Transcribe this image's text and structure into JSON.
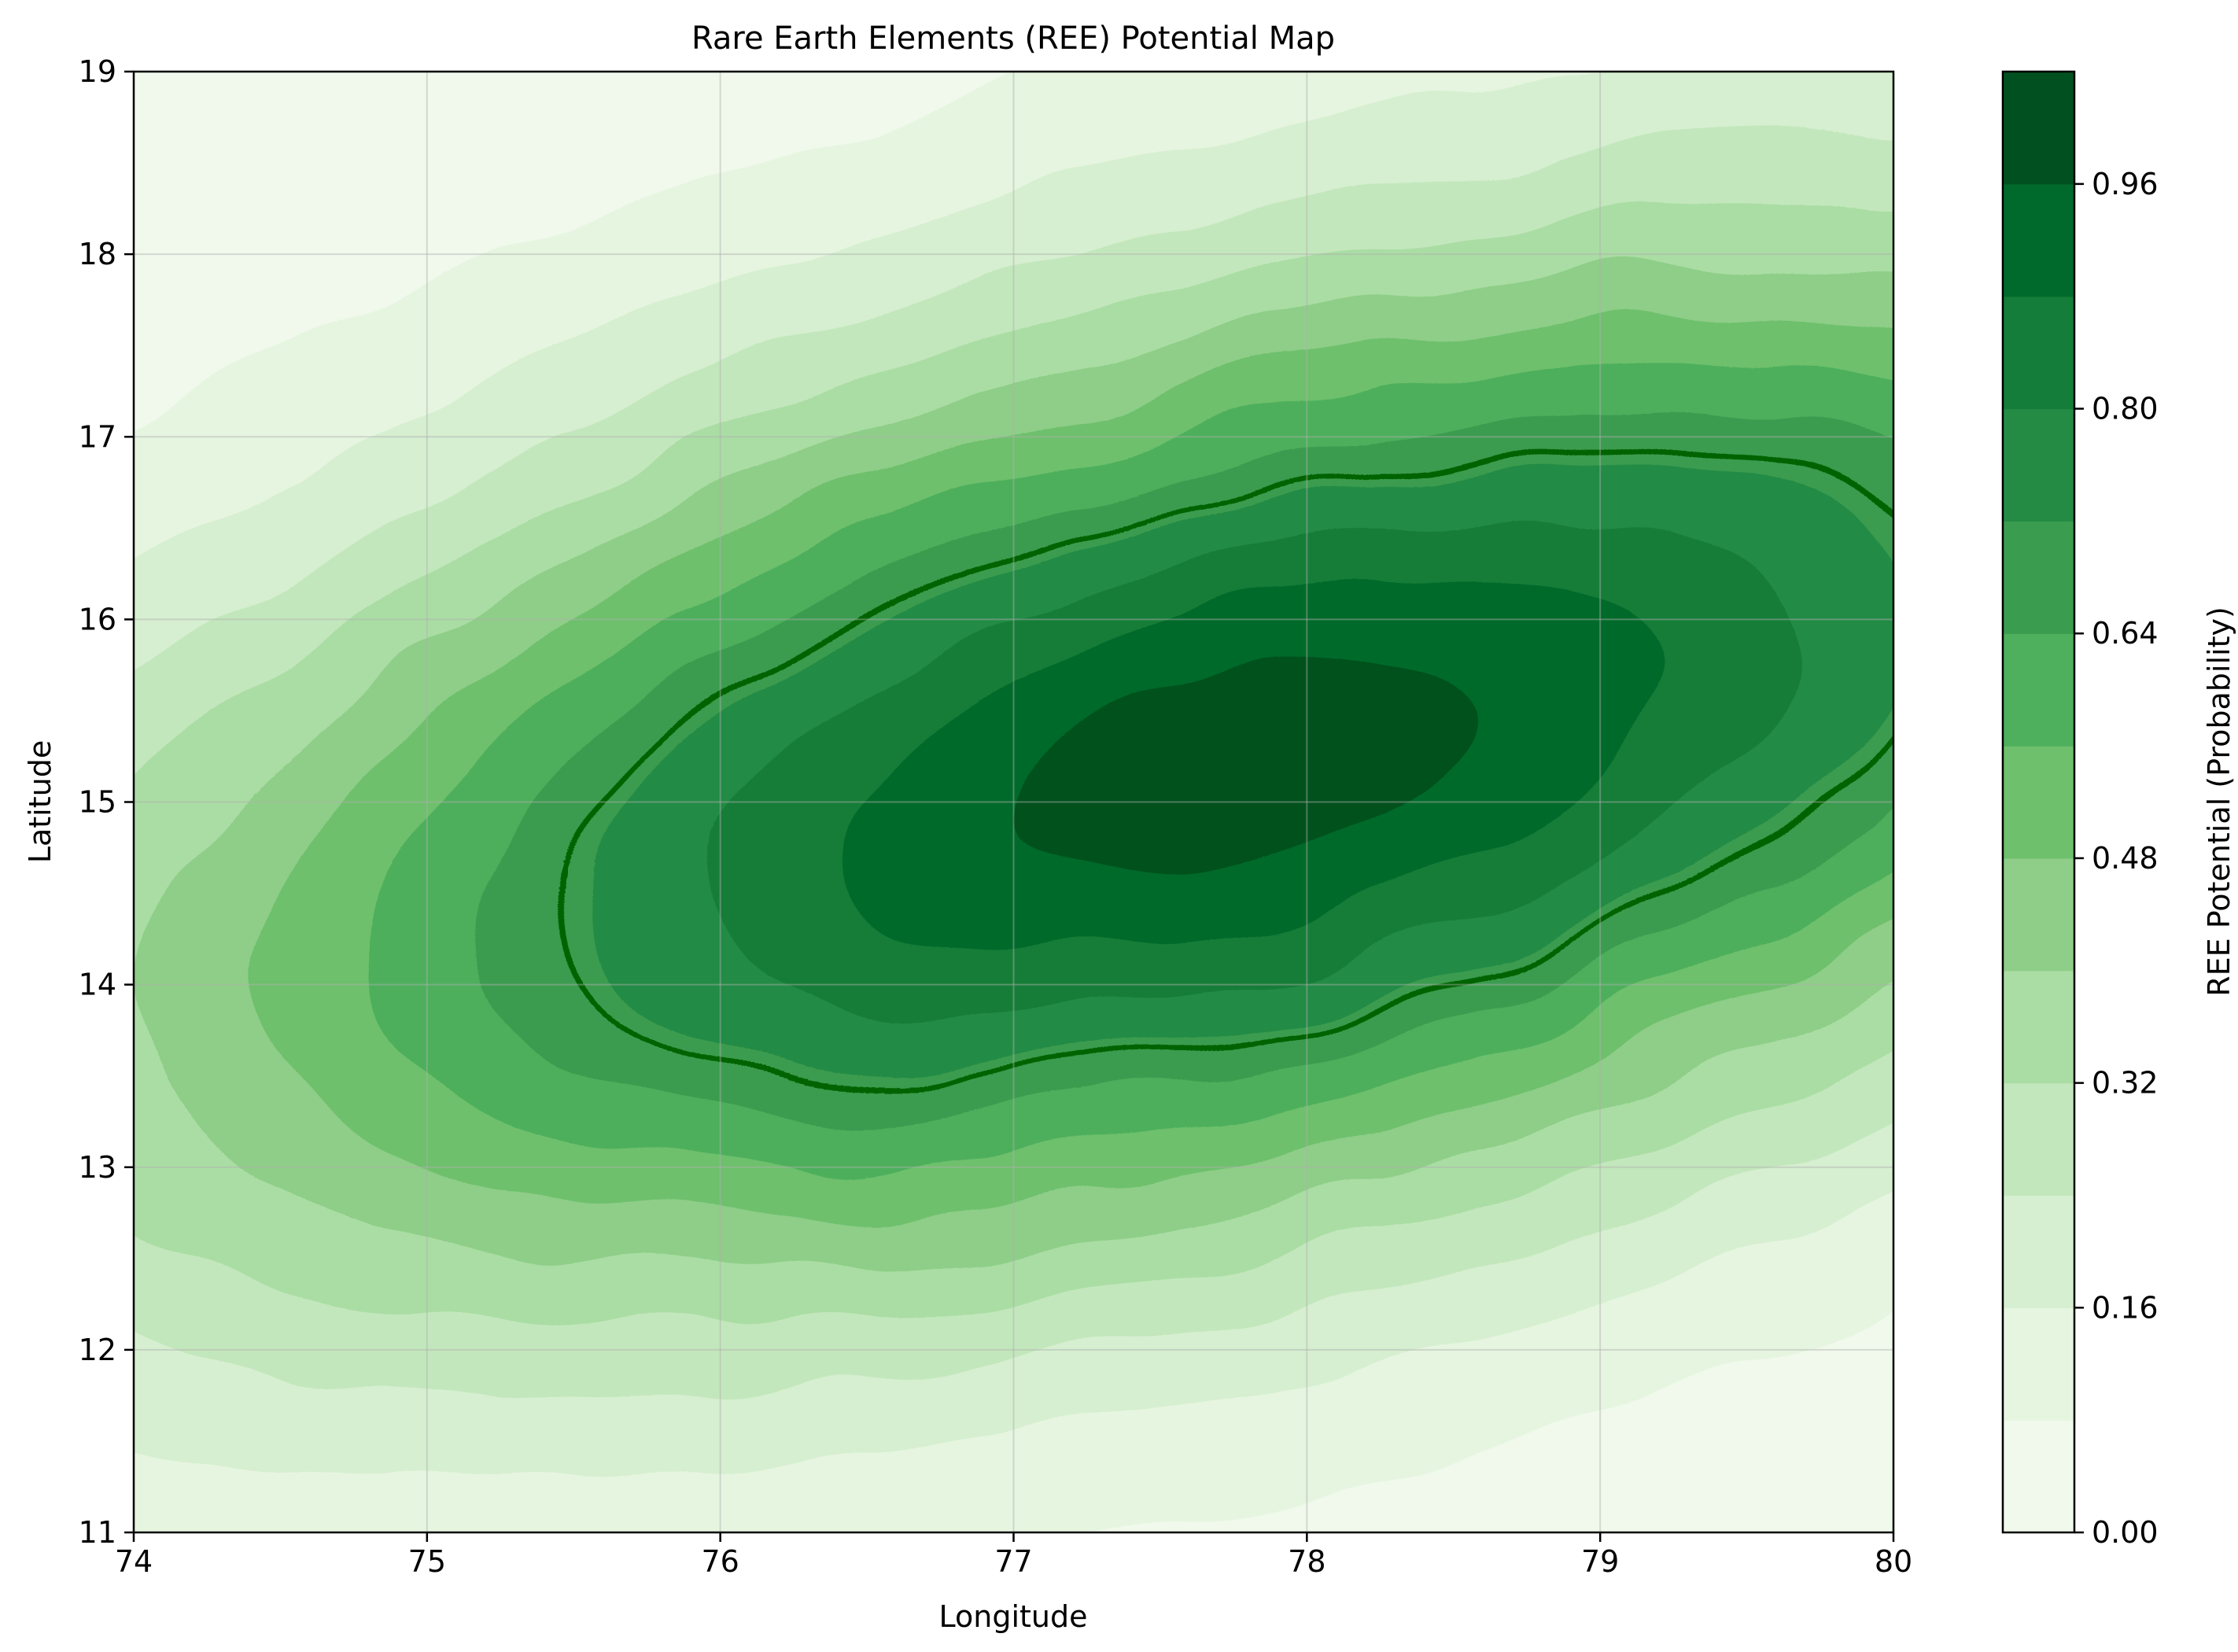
{
  "chart_data": {
    "type": "heatmap",
    "subtype": "filled-contour",
    "title": "Rare Earth Elements (REE) Potential Map",
    "xlabel": "Longitude",
    "ylabel": "Latitude",
    "xlim": [
      74,
      80
    ],
    "ylim": [
      11,
      19
    ],
    "xticks": [
      "74",
      "75",
      "76",
      "77",
      "78",
      "79",
      "80"
    ],
    "yticks": [
      "11",
      "12",
      "13",
      "14",
      "15",
      "16",
      "17",
      "18",
      "19"
    ],
    "grid": true,
    "colormap": "Greens",
    "field": {
      "description_of_shape": "single elongated peak, rotated ellipse",
      "peak": {
        "lon": 77.8,
        "lat": 15.2,
        "value": 1.0
      },
      "major_axis_direction_deg": 28,
      "sigma_major_deg": 3.05,
      "sigma_minor_deg": 1.65
    },
    "contour_levels": [
      0.0,
      0.08,
      0.16,
      0.24,
      0.32,
      0.4,
      0.48,
      0.56,
      0.64,
      0.72,
      0.8,
      0.88,
      0.96,
      1.04
    ],
    "highlighted_contour": {
      "level": 0.7,
      "color": "#006400"
    },
    "colorbar": {
      "label": "REE Potential (Probability)",
      "range": [
        0,
        1.04
      ],
      "ticks": [
        "0.00",
        "0.16",
        "0.32",
        "0.48",
        "0.64",
        "0.80",
        "0.96"
      ],
      "tick_values": [
        0.0,
        0.16,
        0.32,
        0.48,
        0.64,
        0.8,
        0.96
      ]
    },
    "level_colors": [
      "#f0f9ec",
      "#e6f5e0",
      "#d6efd0",
      "#c3e7bc",
      "#aadda4",
      "#8ece88",
      "#6ec06c",
      "#4eaf5c",
      "#3a9c4f",
      "#248b45",
      "#137d39",
      "#006a2c",
      "#00511f"
    ]
  }
}
